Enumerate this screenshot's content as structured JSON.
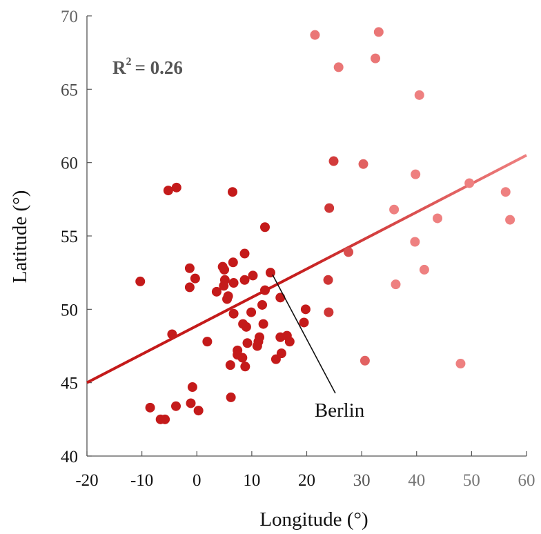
{
  "chart_data": {
    "type": "scatter",
    "title": "",
    "xlabel": "Longitude (°)",
    "ylabel": "Latitude (°)",
    "xlim": [
      -20,
      60
    ],
    "ylim": [
      40,
      70
    ],
    "x_ticks": [
      -20,
      -10,
      0,
      10,
      20,
      30,
      40,
      50,
      60
    ],
    "y_ticks": [
      40,
      45,
      50,
      55,
      60,
      65,
      70
    ],
    "grid": false,
    "legend": "none",
    "r_squared_label": "R² = 0.26",
    "r_squared_text": "R",
    "r_squared_sup": "2",
    "r_squared_value": "= 0.26",
    "annotation": {
      "text": "Berlin",
      "x": 13.4,
      "y": 52.5
    },
    "trendline": {
      "x0": -20,
      "y0": 45.0,
      "x1": 60,
      "y1": 60.5
    },
    "colors": {
      "dark": "#c41a1a",
      "light": "#ee8080"
    },
    "points": [
      {
        "x": -10.3,
        "y": 51.9
      },
      {
        "x": -5.2,
        "y": 58.1
      },
      {
        "x": -3.7,
        "y": 58.3
      },
      {
        "x": -4.5,
        "y": 48.3
      },
      {
        "x": -8.5,
        "y": 43.3
      },
      {
        "x": -6.6,
        "y": 42.5
      },
      {
        "x": -5.8,
        "y": 42.5
      },
      {
        "x": -3.8,
        "y": 43.4
      },
      {
        "x": -1.1,
        "y": 43.6
      },
      {
        "x": -0.8,
        "y": 44.7
      },
      {
        "x": 0.3,
        "y": 43.1
      },
      {
        "x": -1.3,
        "y": 52.8
      },
      {
        "x": -0.3,
        "y": 52.1
      },
      {
        "x": -1.3,
        "y": 51.5
      },
      {
        "x": 1.9,
        "y": 47.8
      },
      {
        "x": 3.6,
        "y": 51.2
      },
      {
        "x": 4.7,
        "y": 52.9
      },
      {
        "x": 5.0,
        "y": 52.7
      },
      {
        "x": 5.1,
        "y": 52.0
      },
      {
        "x": 4.9,
        "y": 51.6
      },
      {
        "x": 5.5,
        "y": 50.7
      },
      {
        "x": 5.7,
        "y": 50.9
      },
      {
        "x": 6.6,
        "y": 53.2
      },
      {
        "x": 6.5,
        "y": 58.0
      },
      {
        "x": 6.7,
        "y": 51.8
      },
      {
        "x": 6.7,
        "y": 49.7
      },
      {
        "x": 8.7,
        "y": 53.8
      },
      {
        "x": 8.7,
        "y": 52.0
      },
      {
        "x": 10.2,
        "y": 52.3
      },
      {
        "x": 12.4,
        "y": 55.6
      },
      {
        "x": 13.4,
        "y": 52.5
      },
      {
        "x": 12.4,
        "y": 51.3
      },
      {
        "x": 11.9,
        "y": 50.3
      },
      {
        "x": 9.9,
        "y": 49.8
      },
      {
        "x": 8.4,
        "y": 49.0
      },
      {
        "x": 9.0,
        "y": 48.8
      },
      {
        "x": 12.1,
        "y": 49.0
      },
      {
        "x": 15.2,
        "y": 50.8
      },
      {
        "x": 11.4,
        "y": 48.1
      },
      {
        "x": 11.2,
        "y": 47.8
      },
      {
        "x": 11.0,
        "y": 47.5
      },
      {
        "x": 9.2,
        "y": 47.7
      },
      {
        "x": 7.4,
        "y": 47.2
      },
      {
        "x": 7.4,
        "y": 46.9
      },
      {
        "x": 8.3,
        "y": 46.7
      },
      {
        "x": 8.8,
        "y": 46.1
      },
      {
        "x": 6.1,
        "y": 46.2
      },
      {
        "x": 6.2,
        "y": 44.0
      },
      {
        "x": 15.2,
        "y": 48.1
      },
      {
        "x": 16.4,
        "y": 48.2
      },
      {
        "x": 16.9,
        "y": 47.8
      },
      {
        "x": 14.4,
        "y": 46.6
      },
      {
        "x": 15.4,
        "y": 47.0
      },
      {
        "x": 19.8,
        "y": 50.0
      },
      {
        "x": 19.5,
        "y": 49.1
      },
      {
        "x": 23.9,
        "y": 52.0
      },
      {
        "x": 24.0,
        "y": 49.8
      },
      {
        "x": 27.6,
        "y": 53.9
      },
      {
        "x": 30.6,
        "y": 46.5
      },
      {
        "x": 24.1,
        "y": 56.9
      },
      {
        "x": 24.9,
        "y": 60.1
      },
      {
        "x": 30.3,
        "y": 59.9
      },
      {
        "x": 21.5,
        "y": 68.7
      },
      {
        "x": 25.8,
        "y": 66.5
      },
      {
        "x": 32.5,
        "y": 67.1
      },
      {
        "x": 33.1,
        "y": 68.9
      },
      {
        "x": 40.5,
        "y": 64.6
      },
      {
        "x": 35.9,
        "y": 56.8
      },
      {
        "x": 39.8,
        "y": 59.2
      },
      {
        "x": 43.8,
        "y": 56.2
      },
      {
        "x": 39.7,
        "y": 54.6
      },
      {
        "x": 36.2,
        "y": 51.7
      },
      {
        "x": 41.4,
        "y": 52.7
      },
      {
        "x": 49.6,
        "y": 58.6
      },
      {
        "x": 56.2,
        "y": 58.0
      },
      {
        "x": 57.0,
        "y": 56.1
      },
      {
        "x": 48.0,
        "y": 46.3
      }
    ]
  }
}
